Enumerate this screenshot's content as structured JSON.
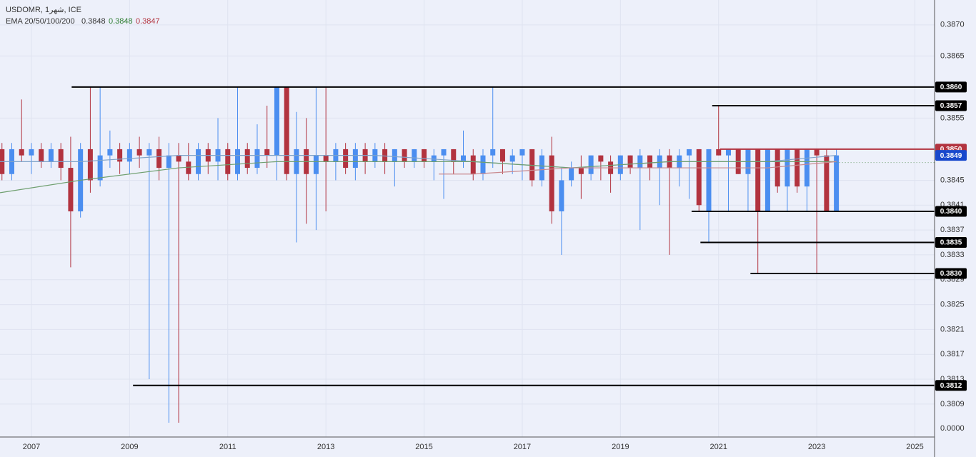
{
  "chart_data": {
    "type": "candlestick",
    "symbol": "USDOMR, 1شهر, ICE",
    "indicator": "EMA 20/50/100/200",
    "indicator_values": [
      {
        "value": 0.3848,
        "label": "0.3848",
        "color": "#333333"
      },
      {
        "value": 0.3848,
        "label": "0.3848",
        "color": "#2e7d32"
      },
      {
        "value": 0.3847,
        "label": "0.3847",
        "color": "#b2333f"
      }
    ],
    "up_color": "#4b8ef0",
    "down_color": "#b2333f",
    "xlim": [
      2006.36,
      2025.4
    ],
    "ylim": [
      0.38037,
      0.3874
    ],
    "xticks": [
      2007,
      2009,
      2011,
      2013,
      2015,
      2017,
      2019,
      2021,
      2023,
      2025
    ],
    "yticks": [
      {
        "value": 0.387,
        "label": "0.3870"
      },
      {
        "value": 0.3865,
        "label": "0.3865"
      },
      {
        "value": 0.3855,
        "label": "0.3855"
      },
      {
        "value": 0.3845,
        "label": "0.3845"
      },
      {
        "value": 0.3841,
        "label": "0.3841"
      },
      {
        "value": 0.3837,
        "label": "0.3837"
      },
      {
        "value": 0.3833,
        "label": "0.3833"
      },
      {
        "value": 0.3829,
        "label": "0.3829"
      },
      {
        "value": 0.3825,
        "label": "0.3825"
      },
      {
        "value": 0.3821,
        "label": "0.3821"
      },
      {
        "value": 0.3817,
        "label": "0.3817"
      },
      {
        "value": 0.3813,
        "label": "0.3813"
      },
      {
        "value": 0.3809,
        "label": "0.3809"
      }
    ],
    "y_axis_footer": "0.0000",
    "grid": true,
    "candles": [
      [
        2006.4,
        0.385,
        0.3851,
        0.3845,
        0.3846
      ],
      [
        2006.6,
        0.3846,
        0.3851,
        0.3845,
        0.385
      ],
      [
        2006.8,
        0.385,
        0.3858,
        0.3848,
        0.3849
      ],
      [
        2007.0,
        0.3849,
        0.3851,
        0.3846,
        0.385
      ],
      [
        2007.2,
        0.385,
        0.3851,
        0.3847,
        0.3848
      ],
      [
        2007.4,
        0.3848,
        0.3851,
        0.3847,
        0.385
      ],
      [
        2007.6,
        0.385,
        0.3851,
        0.3845,
        0.3847
      ],
      [
        2007.8,
        0.3847,
        0.3852,
        0.3831,
        0.384
      ],
      [
        2008.0,
        0.384,
        0.3851,
        0.3839,
        0.385
      ],
      [
        2008.2,
        0.385,
        0.386,
        0.3843,
        0.3845
      ],
      [
        2008.4,
        0.3845,
        0.386,
        0.3844,
        0.3849
      ],
      [
        2008.6,
        0.3849,
        0.3853,
        0.3847,
        0.385
      ],
      [
        2008.8,
        0.385,
        0.3851,
        0.3846,
        0.3848
      ],
      [
        2009.0,
        0.3848,
        0.3851,
        0.3846,
        0.385
      ],
      [
        2009.2,
        0.385,
        0.3852,
        0.3847,
        0.3849
      ],
      [
        2009.4,
        0.3849,
        0.3851,
        0.3813,
        0.385
      ],
      [
        2009.6,
        0.385,
        0.3852,
        0.3845,
        0.3847
      ],
      [
        2009.8,
        0.3847,
        0.3851,
        0.3806,
        0.3849
      ],
      [
        2010.0,
        0.3849,
        0.3851,
        0.3806,
        0.3848
      ],
      [
        2010.2,
        0.3848,
        0.3851,
        0.3845,
        0.3846
      ],
      [
        2010.4,
        0.3846,
        0.3851,
        0.3845,
        0.385
      ],
      [
        2010.6,
        0.385,
        0.3851,
        0.3846,
        0.3848
      ],
      [
        2010.8,
        0.3848,
        0.3855,
        0.3845,
        0.385
      ],
      [
        2011.0,
        0.385,
        0.3851,
        0.3845,
        0.3846
      ],
      [
        2011.2,
        0.3846,
        0.386,
        0.3845,
        0.385
      ],
      [
        2011.4,
        0.385,
        0.3851,
        0.3846,
        0.3847
      ],
      [
        2011.6,
        0.3847,
        0.3854,
        0.3846,
        0.385
      ],
      [
        2011.8,
        0.385,
        0.3857,
        0.3847,
        0.3849
      ],
      [
        2012.0,
        0.3849,
        0.386,
        0.3845,
        0.386
      ],
      [
        2012.2,
        0.386,
        0.386,
        0.3845,
        0.3846
      ],
      [
        2012.4,
        0.3846,
        0.3856,
        0.3835,
        0.385
      ],
      [
        2012.6,
        0.385,
        0.3855,
        0.3838,
        0.3846
      ],
      [
        2012.8,
        0.3846,
        0.386,
        0.3837,
        0.3849
      ],
      [
        2013.0,
        0.3849,
        0.386,
        0.384,
        0.3848
      ],
      [
        2013.2,
        0.3848,
        0.3851,
        0.3845,
        0.385
      ],
      [
        2013.4,
        0.385,
        0.3851,
        0.3846,
        0.3847
      ],
      [
        2013.6,
        0.3847,
        0.3851,
        0.3845,
        0.385
      ],
      [
        2013.8,
        0.385,
        0.3851,
        0.3846,
        0.3848
      ],
      [
        2014.0,
        0.3848,
        0.3851,
        0.3847,
        0.385
      ],
      [
        2014.2,
        0.385,
        0.3851,
        0.3846,
        0.3848
      ],
      [
        2014.4,
        0.3848,
        0.385,
        0.3844,
        0.385
      ],
      [
        2014.6,
        0.385,
        0.385,
        0.3847,
        0.3848
      ],
      [
        2014.8,
        0.3848,
        0.385,
        0.3847,
        0.385
      ],
      [
        2015.0,
        0.385,
        0.385,
        0.3847,
        0.3848
      ],
      [
        2015.2,
        0.3848,
        0.385,
        0.3845,
        0.3849
      ],
      [
        2015.4,
        0.3849,
        0.385,
        0.3842,
        0.385
      ],
      [
        2015.6,
        0.385,
        0.385,
        0.3846,
        0.3848
      ],
      [
        2015.8,
        0.3848,
        0.3853,
        0.3847,
        0.3849
      ],
      [
        2016.0,
        0.3849,
        0.385,
        0.3845,
        0.3846
      ],
      [
        2016.2,
        0.3846,
        0.385,
        0.3845,
        0.3849
      ],
      [
        2016.4,
        0.3849,
        0.386,
        0.3847,
        0.385
      ],
      [
        2016.6,
        0.385,
        0.385,
        0.3846,
        0.3848
      ],
      [
        2016.8,
        0.3848,
        0.385,
        0.3846,
        0.3849
      ],
      [
        2017.0,
        0.3849,
        0.385,
        0.3845,
        0.385
      ],
      [
        2017.2,
        0.385,
        0.385,
        0.3844,
        0.3845
      ],
      [
        2017.4,
        0.3845,
        0.385,
        0.3844,
        0.3849
      ],
      [
        2017.6,
        0.3849,
        0.3852,
        0.3838,
        0.384
      ],
      [
        2017.8,
        0.384,
        0.3847,
        0.3833,
        0.3845
      ],
      [
        2018.0,
        0.3845,
        0.3848,
        0.3844,
        0.3847
      ],
      [
        2018.2,
        0.3847,
        0.3849,
        0.3842,
        0.3846
      ],
      [
        2018.4,
        0.3846,
        0.3849,
        0.3845,
        0.3849
      ],
      [
        2018.6,
        0.3849,
        0.3849,
        0.3845,
        0.3848
      ],
      [
        2018.8,
        0.3848,
        0.3849,
        0.3843,
        0.3846
      ],
      [
        2019.0,
        0.3846,
        0.3849,
        0.3845,
        0.3849
      ],
      [
        2019.2,
        0.3849,
        0.3849,
        0.3846,
        0.3847
      ],
      [
        2019.4,
        0.3847,
        0.385,
        0.3837,
        0.3849
      ],
      [
        2019.6,
        0.3849,
        0.3849,
        0.3845,
        0.3847
      ],
      [
        2019.8,
        0.3847,
        0.385,
        0.3841,
        0.3849
      ],
      [
        2020.0,
        0.3849,
        0.385,
        0.3833,
        0.3847
      ],
      [
        2020.2,
        0.3847,
        0.385,
        0.3844,
        0.3849
      ],
      [
        2020.4,
        0.3849,
        0.385,
        0.3842,
        0.385
      ],
      [
        2020.6,
        0.385,
        0.385,
        0.384,
        0.3841
      ],
      [
        2020.8,
        0.384,
        0.385,
        0.3835,
        0.385
      ],
      [
        2021.0,
        0.385,
        0.3857,
        0.3849,
        0.3849
      ],
      [
        2021.2,
        0.3849,
        0.385,
        0.384,
        0.385
      ],
      [
        2021.4,
        0.385,
        0.385,
        0.3846,
        0.3846
      ],
      [
        2021.6,
        0.3846,
        0.385,
        0.384,
        0.385
      ],
      [
        2021.8,
        0.385,
        0.385,
        0.383,
        0.384
      ],
      [
        2022.0,
        0.384,
        0.385,
        0.384,
        0.385
      ],
      [
        2022.2,
        0.385,
        0.385,
        0.3843,
        0.3844
      ],
      [
        2022.4,
        0.3844,
        0.385,
        0.384,
        0.385
      ],
      [
        2022.6,
        0.385,
        0.385,
        0.3843,
        0.3844
      ],
      [
        2022.8,
        0.3844,
        0.385,
        0.384,
        0.385
      ],
      [
        2023.0,
        0.385,
        0.385,
        0.383,
        0.3849
      ],
      [
        2023.2,
        0.3849,
        0.385,
        0.384,
        0.384
      ],
      [
        2023.4,
        0.384,
        0.385,
        0.384,
        0.3849
      ]
    ],
    "series": [
      {
        "color": "#7fa3c9",
        "x": [
          2006.36,
          2008,
          2010,
          2012,
          2014,
          2016,
          2018,
          2020,
          2022,
          2023.4
        ],
        "values": [
          0.3848,
          0.3848,
          0.3849,
          0.3849,
          0.3849,
          0.3848,
          0.3847,
          0.3848,
          0.3848,
          0.3849
        ]
      },
      {
        "color": "#6f9f6f",
        "x": [
          2006.36,
          2008,
          2010,
          2012,
          2014,
          2016,
          2018,
          2020,
          2022,
          2023.4
        ],
        "values": [
          0.3843,
          0.3845,
          0.3847,
          0.3848,
          0.3848,
          0.3848,
          0.3847,
          0.3848,
          0.3848,
          0.3848
        ]
      },
      {
        "color": "#c98a8f",
        "x": [
          2015.3,
          2016,
          2018,
          2020,
          2022,
          2023.4
        ],
        "values": [
          0.3846,
          0.3846,
          0.3847,
          0.3847,
          0.3847,
          0.3848
        ]
      }
    ],
    "hlines": [
      {
        "value": 0.386,
        "label": "0.3860",
        "start": 2007.82,
        "color": "#000000"
      },
      {
        "value": 0.3857,
        "label": "0.3857",
        "start": 2020.87,
        "color": "#000000"
      },
      {
        "value": 0.385,
        "label": "0.3850",
        "start": 2021.03,
        "color": "#b2333f"
      },
      {
        "value": 0.384,
        "label": "0.3840",
        "start": 2020.45,
        "color": "#000000"
      },
      {
        "value": 0.3835,
        "label": "0.3835",
        "start": 2020.63,
        "color": "#000000"
      },
      {
        "value": 0.383,
        "label": "0.3830",
        "start": 2021.65,
        "color": "#000000"
      },
      {
        "value": 0.3812,
        "label": "0.3812",
        "start": 2009.07,
        "color": "#000000"
      }
    ],
    "last_price": {
      "value": 0.3849,
      "label": "0.3849",
      "color": "#1848cc"
    }
  }
}
